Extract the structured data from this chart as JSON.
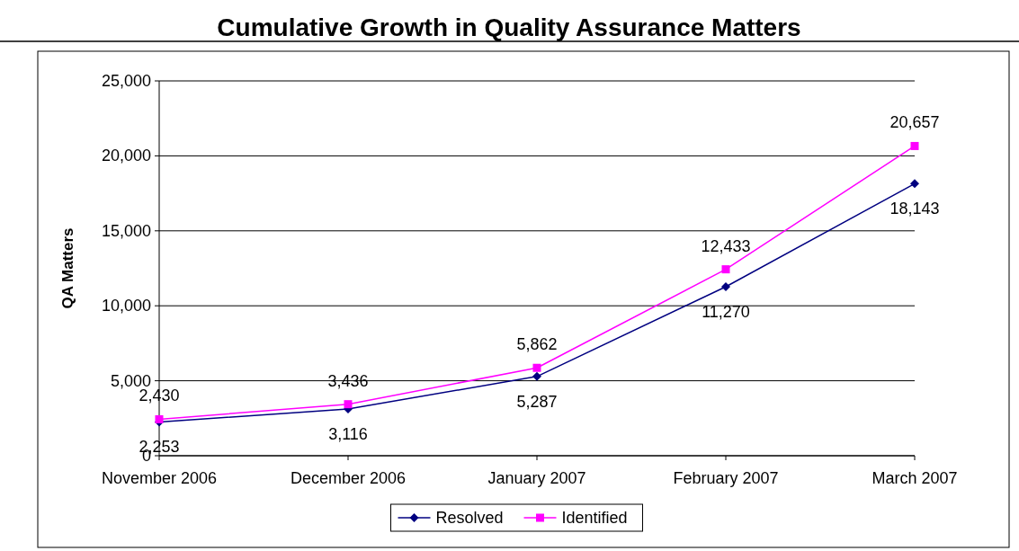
{
  "chart_data": {
    "type": "line",
    "title": "Cumulative Growth in Quality Assurance Matters",
    "ylabel": "QA Matters",
    "categories": [
      "November 2006",
      "December 2006",
      "January 2007",
      "February 2007",
      "March 2007"
    ],
    "series": [
      {
        "name": "Resolved",
        "color": "#000080",
        "values": [
          2253,
          3116,
          5287,
          11270,
          18143
        ],
        "value_labels": [
          "2,253",
          "3,116",
          "5,287",
          "11,270",
          "18,143"
        ],
        "marker": "diamond"
      },
      {
        "name": "Identified",
        "color": "#ff00ff",
        "values": [
          2430,
          3436,
          5862,
          12433,
          20657
        ],
        "value_labels": [
          "2,430",
          "3,436",
          "5,862",
          "12,433",
          "20,657"
        ],
        "marker": "square"
      }
    ],
    "ylim": [
      0,
      25000
    ],
    "yticks": [
      {
        "value": 0,
        "label": "0"
      },
      {
        "value": 5000,
        "label": "5,000"
      },
      {
        "value": 10000,
        "label": "10,000"
      },
      {
        "value": 15000,
        "label": "15,000"
      },
      {
        "value": 20000,
        "label": "20,000"
      },
      {
        "value": 25000,
        "label": "25,000"
      }
    ],
    "grid": "y",
    "legend": "bottom",
    "line_style": "solid"
  }
}
